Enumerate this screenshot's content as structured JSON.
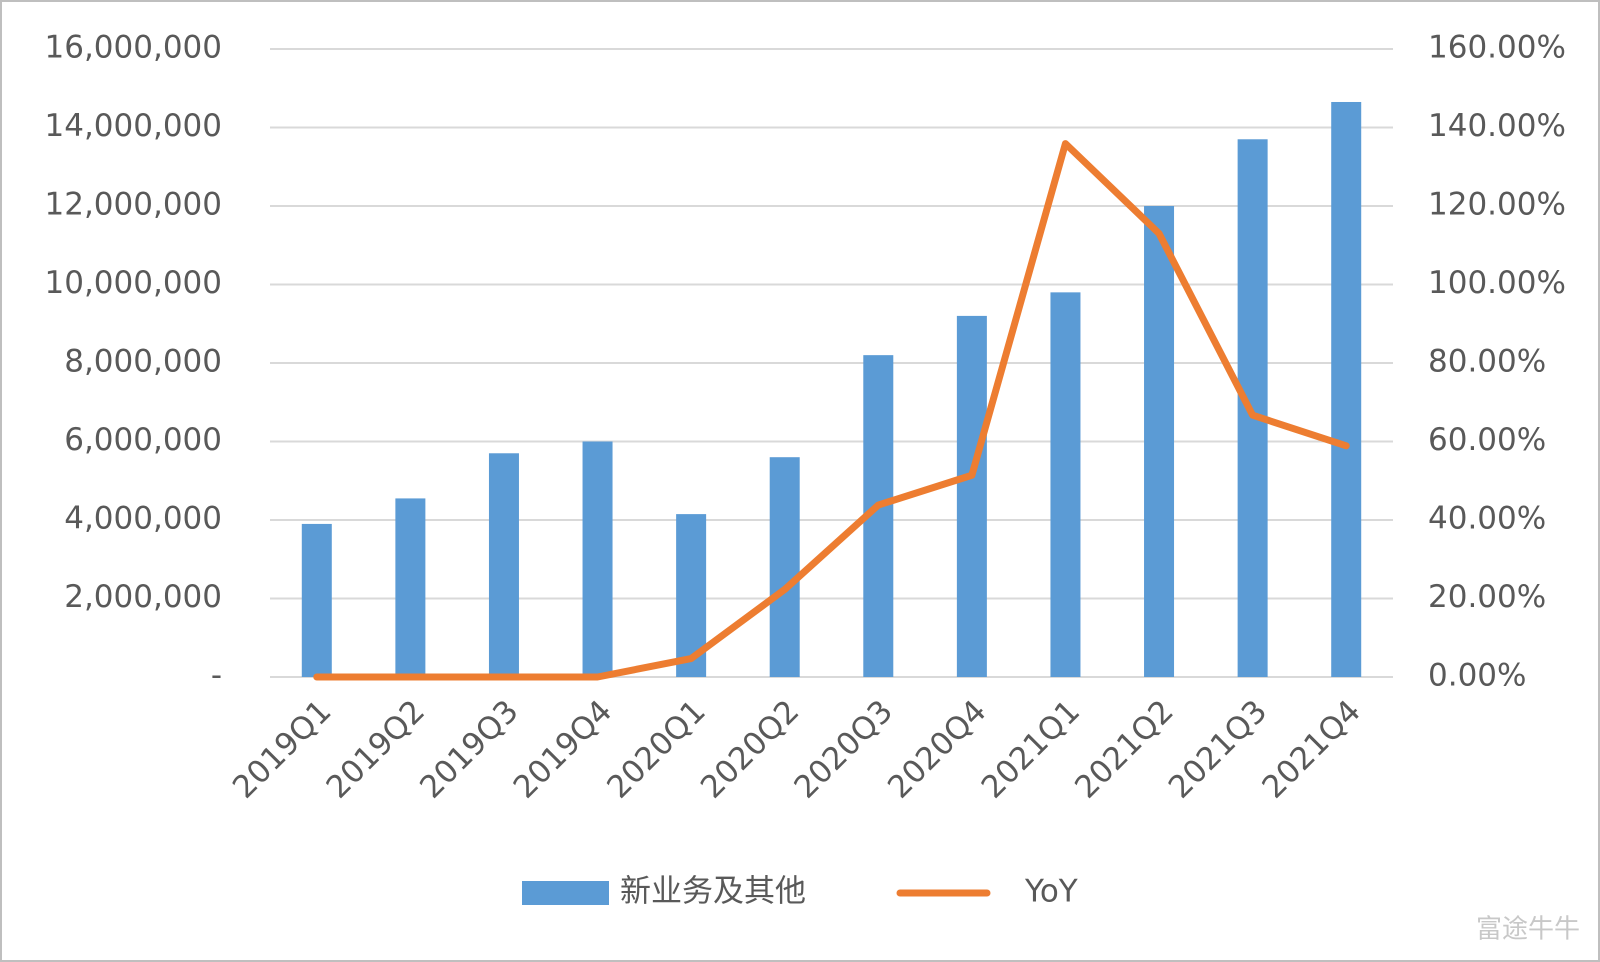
{
  "chart_data": {
    "type": "bar",
    "categories": [
      "2019Q1",
      "2019Q2",
      "2019Q3",
      "2019Q4",
      "2020Q1",
      "2020Q2",
      "2020Q3",
      "2020Q4",
      "2021Q1",
      "2021Q2",
      "2021Q3",
      "2021Q4"
    ],
    "series": [
      {
        "name": "新业务及其他",
        "type": "bar",
        "color": "#5b9bd5",
        "values": [
          3900000,
          4550000,
          5700000,
          6000000,
          4150000,
          5600000,
          8200000,
          9200000,
          9800000,
          12000000,
          13700000,
          14650000
        ]
      },
      {
        "name": "YoY",
        "type": "line",
        "axis": "y2",
        "color": "#ed7d31",
        "values": [
          0,
          0,
          0,
          0,
          4.7,
          22.3,
          43.8,
          51.4,
          135.9,
          113,
          66.7,
          58.9
        ]
      }
    ],
    "ylim": [
      0,
      16000000
    ],
    "yticks": [
      {
        "value": 0,
        "label": "-"
      },
      {
        "value": 2000000,
        "label": "2,000,000"
      },
      {
        "value": 4000000,
        "label": "4,000,000"
      },
      {
        "value": 6000000,
        "label": "6,000,000"
      },
      {
        "value": 8000000,
        "label": "8,000,000"
      },
      {
        "value": 10000000,
        "label": "10,000,000"
      },
      {
        "value": 12000000,
        "label": "12,000,000"
      },
      {
        "value": 14000000,
        "label": "14,000,000"
      },
      {
        "value": 16000000,
        "label": "16,000,000"
      }
    ],
    "y2lim": [
      0,
      160
    ],
    "y2ticks": [
      {
        "value": 0,
        "label": "0.00%"
      },
      {
        "value": 20,
        "label": "20.00%"
      },
      {
        "value": 40,
        "label": "40.00%"
      },
      {
        "value": 60,
        "label": "60.00%"
      },
      {
        "value": 80,
        "label": "80.00%"
      },
      {
        "value": 100,
        "label": "100.00%"
      },
      {
        "value": 120,
        "label": "120.00%"
      },
      {
        "value": 140,
        "label": "140.00%"
      },
      {
        "value": 160,
        "label": "160.00%"
      }
    ],
    "grid": true,
    "legend": "bottom",
    "watermark": "富途牛牛"
  }
}
